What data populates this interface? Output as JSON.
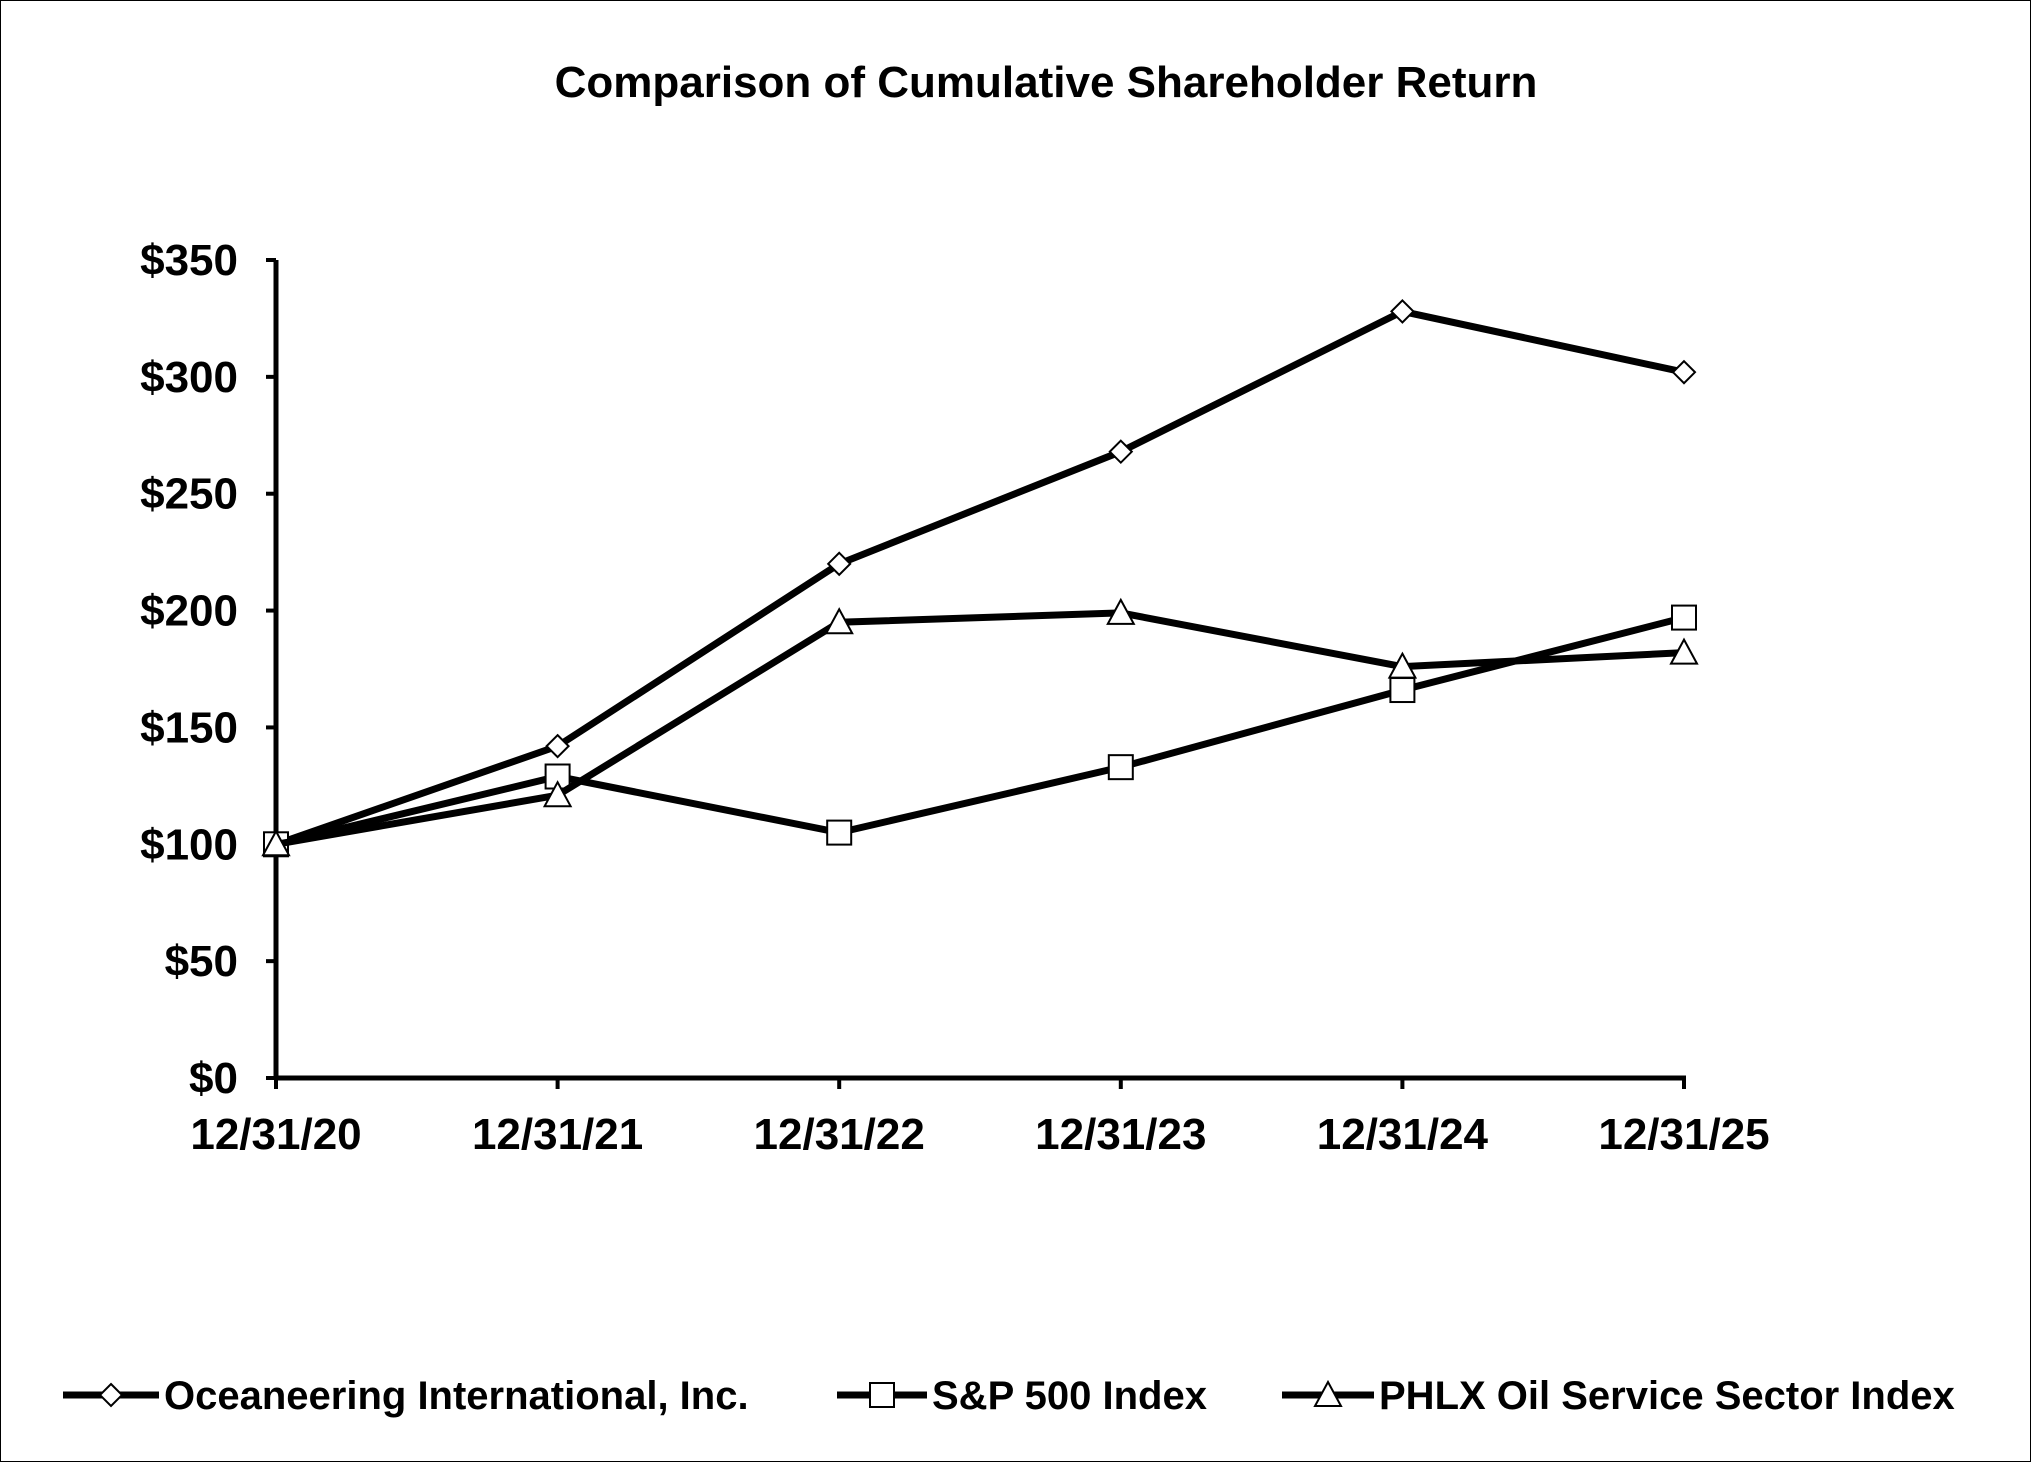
{
  "chart_data": {
    "type": "line",
    "title": "Comparison of Cumulative Shareholder Return",
    "xlabel": "",
    "ylabel": "",
    "categories": [
      "12/31/20",
      "12/31/21",
      "12/31/22",
      "12/31/23",
      "12/31/24",
      "12/31/25"
    ],
    "ylim": [
      0,
      350
    ],
    "yticks": [
      0,
      50,
      100,
      150,
      200,
      250,
      300,
      350
    ],
    "ytick_labels": [
      "$0",
      "$50",
      "$100",
      "$150",
      "$200",
      "$250",
      "$300",
      "$350"
    ],
    "grid": false,
    "legend_position": "bottom",
    "series": [
      {
        "name": "Oceaneering International, Inc.",
        "marker": "diamond",
        "values": [
          100,
          142,
          220,
          268,
          328,
          302
        ]
      },
      {
        "name": "S&P 500 Index",
        "marker": "square",
        "values": [
          100,
          129,
          105,
          133,
          166,
          197
        ]
      },
      {
        "name": "PHLX Oil Service Sector Index",
        "marker": "triangle",
        "values": [
          100,
          121,
          195,
          199,
          176,
          182
        ]
      }
    ]
  },
  "colors": {
    "line": "#000000",
    "marker_fill": "#ffffff",
    "background": "#ffffff"
  }
}
